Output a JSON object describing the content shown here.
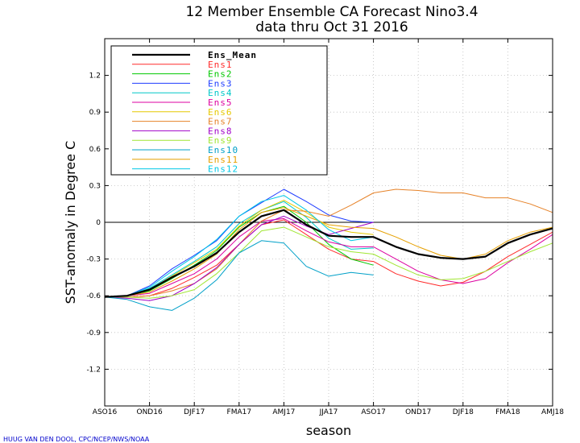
{
  "chart_data": {
    "type": "line",
    "title": "12 Member Ensemble CA Forecast Nino3.4",
    "subtitle": "data thru Oct 31 2016",
    "xlabel": "season",
    "ylabel": "SST-anomaly in Degree C",
    "credit": "HUUG VAN DEN DOOL, CPC/NCEP/NWS/NOAA",
    "ylim": [
      -1.5,
      1.5
    ],
    "yticks": [
      -1.2,
      -0.9,
      -0.6,
      -0.3,
      0,
      0.3,
      0.6,
      0.9,
      1.2
    ],
    "ytick_labels": [
      "-1.2",
      "-0.9",
      "-0.6",
      "-0.3",
      "0",
      "0.3",
      "0.6",
      "0.9",
      "1.2"
    ],
    "xlim": [
      0,
      20
    ],
    "xtick_labels": [
      {
        "x": 0,
        "label": "ASO16"
      },
      {
        "x": 2,
        "label": "OND16"
      },
      {
        "x": 4,
        "label": "DJF17"
      },
      {
        "x": 6,
        "label": "FMA17"
      },
      {
        "x": 8,
        "label": "AMJ17"
      },
      {
        "x": 10,
        "label": "JJA17"
      },
      {
        "x": 12,
        "label": "ASO17"
      },
      {
        "x": 14,
        "label": "OND17"
      },
      {
        "x": 16,
        "label": "DJF18"
      },
      {
        "x": 18,
        "label": "FMA18"
      },
      {
        "x": 20,
        "label": "AMJ18"
      }
    ],
    "grid": true,
    "legend_placement": "top-left",
    "series": [
      {
        "name": "Ens_Mean",
        "color": "#000000",
        "width": 2.2,
        "x": [
          0,
          1,
          2,
          3,
          4,
          5,
          6,
          7,
          8,
          9,
          10,
          11,
          12,
          13,
          14,
          15,
          16,
          17,
          18,
          19,
          20
        ],
        "values": [
          -0.61,
          -0.6,
          -0.55,
          -0.45,
          -0.36,
          -0.25,
          -0.08,
          0.05,
          0.1,
          -0.02,
          -0.11,
          -0.12,
          -0.12,
          -0.2,
          -0.26,
          -0.29,
          -0.3,
          -0.28,
          -0.17,
          -0.1,
          -0.05
        ]
      },
      {
        "name": "Ens1",
        "color": "#ff2a2a",
        "width": 1,
        "x": [
          0,
          1,
          2,
          3,
          4,
          5,
          6,
          7,
          8,
          9,
          10,
          11,
          12,
          13,
          14,
          15,
          16,
          17,
          18,
          19,
          20
        ],
        "values": [
          -0.61,
          -0.61,
          -0.6,
          -0.54,
          -0.45,
          -0.35,
          -0.18,
          -0.02,
          0.02,
          -0.1,
          -0.22,
          -0.3,
          -0.32,
          -0.42,
          -0.48,
          -0.52,
          -0.49,
          -0.4,
          -0.28,
          -0.18,
          -0.08
        ]
      },
      {
        "name": "Ens2",
        "color": "#00c800",
        "width": 1,
        "x": [
          0,
          1,
          2,
          3,
          4,
          5,
          6,
          7,
          8,
          9,
          10,
          11,
          12
        ],
        "values": [
          -0.61,
          -0.6,
          -0.56,
          -0.46,
          -0.35,
          -0.23,
          -0.04,
          0.08,
          0.13,
          0.0,
          -0.18,
          -0.3,
          -0.35
        ]
      },
      {
        "name": "Ens3",
        "color": "#1e3cff",
        "width": 1,
        "x": [
          0,
          1,
          2,
          3,
          4,
          5,
          6,
          7,
          8,
          9,
          10,
          11,
          12
        ],
        "values": [
          -0.61,
          -0.6,
          -0.52,
          -0.38,
          -0.27,
          -0.15,
          0.05,
          0.16,
          0.27,
          0.17,
          0.06,
          0.01,
          0.0
        ]
      },
      {
        "name": "Ens4",
        "color": "#00c8c8",
        "width": 1,
        "x": [
          0,
          1,
          2,
          3,
          4,
          5,
          6,
          7,
          8,
          9,
          10,
          11,
          12
        ],
        "values": [
          -0.61,
          -0.6,
          -0.54,
          -0.43,
          -0.32,
          -0.2,
          -0.01,
          0.1,
          0.17,
          0.04,
          -0.13,
          -0.22,
          -0.21
        ]
      },
      {
        "name": "Ens5",
        "color": "#dc00a0",
        "width": 1,
        "x": [
          0,
          1,
          2,
          3,
          4,
          5,
          6,
          7,
          8,
          9,
          10,
          11,
          12,
          13,
          14,
          15,
          16,
          17,
          18,
          19,
          20
        ],
        "values": [
          -0.61,
          -0.6,
          -0.58,
          -0.5,
          -0.42,
          -0.3,
          -0.12,
          0.01,
          0.03,
          -0.07,
          -0.16,
          -0.2,
          -0.2,
          -0.3,
          -0.4,
          -0.47,
          -0.5,
          -0.46,
          -0.33,
          -0.22,
          -0.1
        ]
      },
      {
        "name": "Ens6",
        "color": "#e6c800",
        "width": 1,
        "x": [
          0,
          1,
          2,
          3,
          4,
          5,
          6,
          7,
          8,
          9,
          10,
          11,
          12
        ],
        "values": [
          -0.61,
          -0.6,
          -0.55,
          -0.44,
          -0.33,
          -0.22,
          -0.03,
          0.1,
          0.18,
          0.08,
          -0.04,
          -0.08,
          -0.1
        ]
      },
      {
        "name": "Ens7",
        "color": "#e68228",
        "width": 1,
        "x": [
          0,
          1,
          2,
          3,
          4,
          5,
          6,
          7,
          8,
          9,
          10,
          11,
          12,
          13,
          14,
          15,
          16,
          17,
          18,
          19,
          20
        ],
        "values": [
          -0.61,
          -0.61,
          -0.6,
          -0.56,
          -0.5,
          -0.38,
          -0.18,
          0.01,
          0.1,
          0.09,
          0.05,
          0.14,
          0.24,
          0.27,
          0.26,
          0.24,
          0.24,
          0.2,
          0.2,
          0.15,
          0.08
        ]
      },
      {
        "name": "Ens8",
        "color": "#a000c8",
        "width": 1,
        "x": [
          0,
          1,
          2,
          3,
          4,
          5,
          6,
          7,
          8,
          9,
          10,
          11,
          12
        ],
        "values": [
          -0.61,
          -0.62,
          -0.64,
          -0.6,
          -0.5,
          -0.37,
          -0.18,
          -0.02,
          0.05,
          -0.03,
          -0.1,
          -0.05,
          0.0
        ]
      },
      {
        "name": "Ens9",
        "color": "#a0e632",
        "width": 1,
        "x": [
          0,
          1,
          2,
          3,
          4,
          5,
          6,
          7,
          8,
          9,
          10,
          11,
          12,
          13,
          14,
          15,
          16,
          17,
          18,
          19,
          20
        ],
        "values": [
          -0.61,
          -0.61,
          -0.62,
          -0.6,
          -0.55,
          -0.42,
          -0.25,
          -0.07,
          -0.04,
          -0.12,
          -0.2,
          -0.24,
          -0.26,
          -0.35,
          -0.43,
          -0.47,
          -0.46,
          -0.4,
          -0.32,
          -0.24,
          -0.17
        ]
      },
      {
        "name": "Ens10",
        "color": "#00a0c8",
        "width": 1,
        "x": [
          0,
          1,
          2,
          3,
          4,
          5,
          6,
          7,
          8,
          9,
          10,
          11,
          12
        ],
        "values": [
          -0.61,
          -0.63,
          -0.69,
          -0.72,
          -0.62,
          -0.47,
          -0.25,
          -0.15,
          -0.17,
          -0.36,
          -0.44,
          -0.41,
          -0.43
        ]
      },
      {
        "name": "Ens11",
        "color": "#e6a000",
        "width": 1,
        "x": [
          0,
          1,
          2,
          3,
          4,
          5,
          6,
          7,
          8,
          9,
          10,
          11,
          12,
          13,
          14,
          15,
          16,
          17,
          18,
          19,
          20
        ],
        "values": [
          -0.61,
          -0.6,
          -0.57,
          -0.48,
          -0.38,
          -0.26,
          -0.06,
          0.08,
          0.12,
          0.05,
          -0.02,
          -0.04,
          -0.05,
          -0.12,
          -0.2,
          -0.27,
          -0.3,
          -0.26,
          -0.15,
          -0.08,
          -0.04
        ]
      },
      {
        "name": "Ens12",
        "color": "#00c8e6",
        "width": 1,
        "x": [
          0,
          1,
          2,
          3,
          4,
          5,
          6,
          7,
          8,
          9,
          10,
          11,
          12
        ],
        "values": [
          -0.61,
          -0.6,
          -0.53,
          -0.4,
          -0.28,
          -0.14,
          0.05,
          0.17,
          0.22,
          0.1,
          -0.06,
          -0.15,
          -0.12
        ]
      }
    ]
  }
}
